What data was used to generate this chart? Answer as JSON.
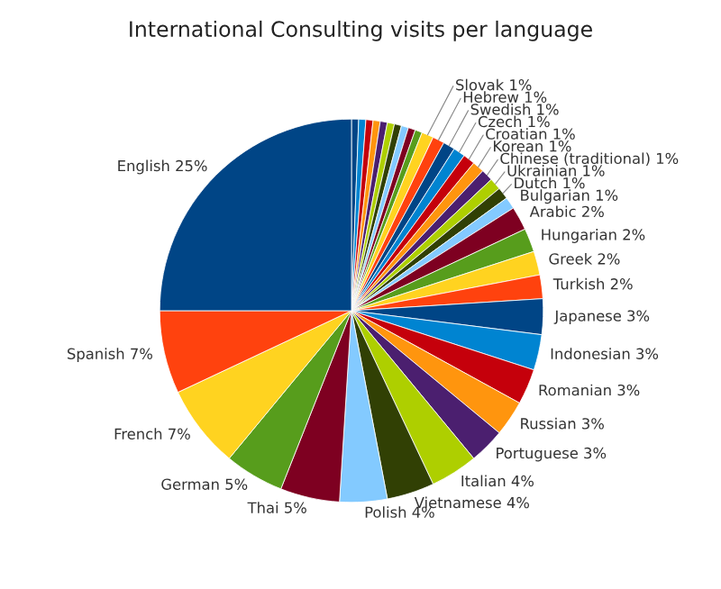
{
  "chart_data": {
    "type": "pie",
    "title": "International Consulting visits per language",
    "categories": [
      null,
      null,
      null,
      null,
      null,
      null,
      null,
      null,
      null,
      null,
      "Slovak",
      "Hebrew",
      "Swedish",
      "Czech",
      "Croatian",
      "Korean",
      "Chinese (traditional)",
      "Ukrainian",
      "Dutch",
      "Bulgarian",
      "Arabic",
      "Hungarian",
      "Greek",
      "Turkish",
      "Japanese",
      "Indonesian",
      "Romanian",
      "Russian",
      "Portuguese",
      "Italian",
      "Vietnamese",
      "Polish",
      "Thai",
      "German",
      "French",
      "Spanish",
      "English"
    ],
    "values": [
      0.6,
      0.6,
      0.6,
      0.6,
      0.6,
      0.6,
      0.6,
      0.6,
      0.6,
      0.6,
      1,
      1,
      1,
      1,
      1,
      1,
      1,
      1,
      1,
      1,
      2,
      2,
      2,
      2,
      3,
      3,
      3,
      3,
      3,
      4,
      4,
      4,
      5,
      5,
      7,
      7,
      25
    ],
    "value_labels": [
      null,
      null,
      null,
      null,
      null,
      null,
      null,
      null,
      null,
      null,
      "1%",
      "1%",
      "1%",
      "1%",
      "1%",
      "1%",
      "1%",
      "1%",
      "1%",
      "1%",
      "2%",
      "2%",
      "2%",
      "2%",
      "3%",
      "3%",
      "3%",
      "3%",
      "3%",
      "4%",
      "4%",
      "4%",
      "5%",
      "5%",
      "7%",
      "7%",
      "25%"
    ],
    "colors": [
      "#004586",
      "#0084d1",
      "#c5000b",
      "#ff950e",
      "#4b1f6f",
      "#aecf00",
      "#314004",
      "#83caff",
      "#7e0021",
      "#579d1c",
      "#ffd320",
      "#ff420e",
      "#004586",
      "#0084d1",
      "#c5000b",
      "#ff950e",
      "#4b1f6f",
      "#aecf00",
      "#314004",
      "#83caff",
      "#7e0021",
      "#579d1c",
      "#ffd320",
      "#ff420e",
      "#004586",
      "#0084d1",
      "#c5000b",
      "#ff950e",
      "#4b1f6f",
      "#aecf00",
      "#314004",
      "#83caff",
      "#7e0021",
      "#579d1c",
      "#ffd320",
      "#ff420e",
      "#004586"
    ],
    "legend": false
  }
}
